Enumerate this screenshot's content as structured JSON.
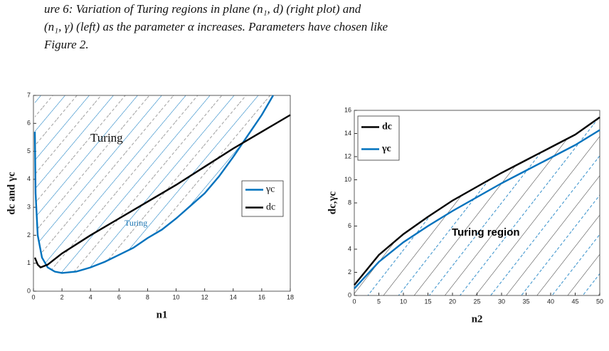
{
  "caption": [
    "ure 6: Variation of Turing regions in plane (n₁, d) (right plot) and",
    "(n₁, γ) (left) as the parameter α increases. Parameters have chosen like",
    "Figure 2."
  ],
  "chart_data": [
    {
      "type": "line",
      "xlabel": "n1",
      "ylabel": "dc and γc",
      "xlim": [
        0,
        18
      ],
      "ylim": [
        0,
        7
      ],
      "xticks": [
        0,
        2,
        4,
        6,
        8,
        10,
        12,
        14,
        16,
        18
      ],
      "yticks": [
        0,
        1,
        2,
        3,
        4,
        5,
        6,
        7
      ],
      "legend": "right",
      "hatch": "above-first",
      "annotations": [
        {
          "text": "Turing",
          "color": "#111111"
        },
        {
          "text": "Turing",
          "color": "#1f77b4"
        }
      ],
      "series": [
        {
          "name": "γc",
          "color": "#0072bd",
          "x": [
            0.1,
            0.15,
            0.3,
            0.6,
            1,
            1.5,
            2,
            3,
            4,
            5,
            6,
            7,
            8,
            9,
            10,
            11,
            12,
            13,
            14,
            15,
            16,
            16.8
          ],
          "values": [
            5.7,
            3.5,
            2.0,
            1.2,
            0.85,
            0.7,
            0.65,
            0.7,
            0.85,
            1.05,
            1.3,
            1.55,
            1.9,
            2.2,
            2.6,
            3.05,
            3.5,
            4.1,
            4.8,
            5.55,
            6.3,
            7.0
          ]
        },
        {
          "name": "dc",
          "color": "#000000",
          "x": [
            0.1,
            0.3,
            0.5,
            1,
            2,
            4,
            6,
            8,
            10,
            12,
            14,
            16,
            18
          ],
          "values": [
            1.2,
            0.95,
            0.85,
            0.95,
            1.35,
            2.0,
            2.6,
            3.2,
            3.8,
            4.45,
            5.1,
            5.7,
            6.3
          ]
        }
      ]
    },
    {
      "type": "line",
      "xlabel": "n2",
      "ylabel": "dc,γc",
      "xlim": [
        0,
        50
      ],
      "ylim": [
        0,
        16
      ],
      "xticks": [
        0,
        5,
        10,
        15,
        20,
        25,
        30,
        35,
        40,
        45,
        50
      ],
      "yticks": [
        0,
        2,
        4,
        6,
        8,
        10,
        12,
        14,
        16
      ],
      "legend": "upper left",
      "hatch": "below-first",
      "annotations": [
        {
          "text": "Turing region",
          "color": "#000000"
        }
      ],
      "x": [
        0,
        5,
        10,
        15,
        20,
        25,
        30,
        35,
        40,
        45,
        50
      ],
      "series": [
        {
          "name": "dc",
          "color": "#000000",
          "values": [
            0.9,
            3.5,
            5.3,
            6.8,
            8.2,
            9.4,
            10.6,
            11.7,
            12.8,
            13.9,
            15.4
          ]
        },
        {
          "name": "γc",
          "color": "#0072bd",
          "values": [
            0.6,
            2.9,
            4.6,
            6.0,
            7.3,
            8.5,
            9.7,
            10.8,
            11.9,
            13.0,
            14.3
          ]
        }
      ]
    }
  ]
}
